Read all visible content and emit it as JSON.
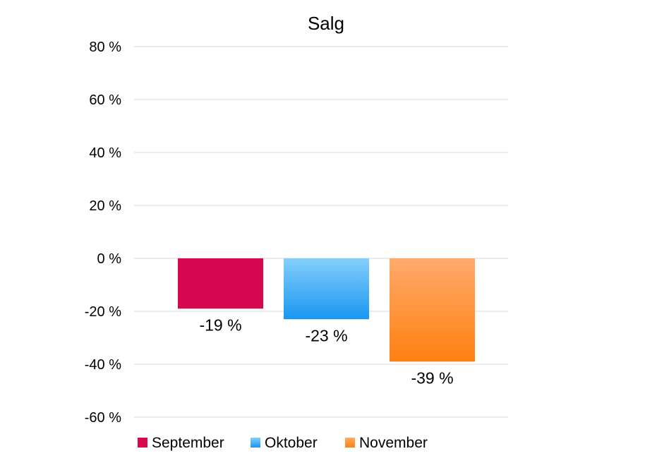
{
  "chart_data": {
    "type": "bar",
    "title": "Salg",
    "xlabel": "",
    "ylabel": "",
    "ylim": [
      -60,
      80
    ],
    "yticks": [
      80,
      60,
      40,
      20,
      0,
      -20,
      -40,
      -60
    ],
    "ytick_labels": [
      "80 %",
      "60 %",
      "40 %",
      "20 %",
      "0 %",
      "-20 %",
      "-40 %",
      "-60 %"
    ],
    "grid": true,
    "legend_position": "bottom",
    "series": [
      {
        "name": "September",
        "values": [
          -19
        ],
        "label": "-19 %",
        "color": "#D6064F",
        "color_light": "#D6064F"
      },
      {
        "name": "Oktober",
        "values": [
          -23
        ],
        "label": "-23 %",
        "color": "#1A96F0",
        "color_light": "#84CFFB"
      },
      {
        "name": "November",
        "values": [
          -39
        ],
        "label": "-39 %",
        "color": "#FF8010",
        "color_light": "#FFAA6C"
      }
    ]
  }
}
